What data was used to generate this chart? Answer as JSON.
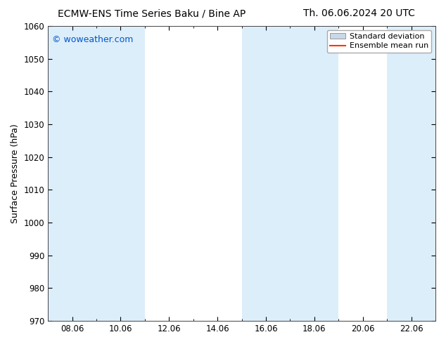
{
  "title_left": "ECMW-ENS Time Series Baku / Bine AP",
  "title_right": "Th. 06.06.2024 20 UTC",
  "ylabel": "Surface Pressure (hPa)",
  "ylim": [
    970,
    1060
  ],
  "yticks": [
    970,
    980,
    990,
    1000,
    1010,
    1020,
    1030,
    1040,
    1050,
    1060
  ],
  "xtick_labels": [
    "08.06",
    "10.06",
    "12.06",
    "14.06",
    "16.06",
    "18.06",
    "20.06",
    "22.06"
  ],
  "watermark": "© woweather.com",
  "watermark_color": "#0055cc",
  "bg_color": "#ffffff",
  "plot_bg_color": "#ffffff",
  "shaded_bands": [
    {
      "xmin": 7.0,
      "xmax": 9.0
    },
    {
      "xmin": 9.0,
      "xmax": 11.0
    },
    {
      "xmin": 15.0,
      "xmax": 17.0
    },
    {
      "xmin": 17.0,
      "xmax": 19.0
    },
    {
      "xmin": 21.0,
      "xmax": 23.0
    }
  ],
  "band_color": "#dceefa",
  "legend_std_color": "#c8d8e8",
  "legend_std_edge": "#999999",
  "legend_mean_color": "#ff3300",
  "title_fontsize": 10,
  "ylabel_fontsize": 9,
  "tick_fontsize": 8.5,
  "watermark_fontsize": 9,
  "legend_fontsize": 8
}
